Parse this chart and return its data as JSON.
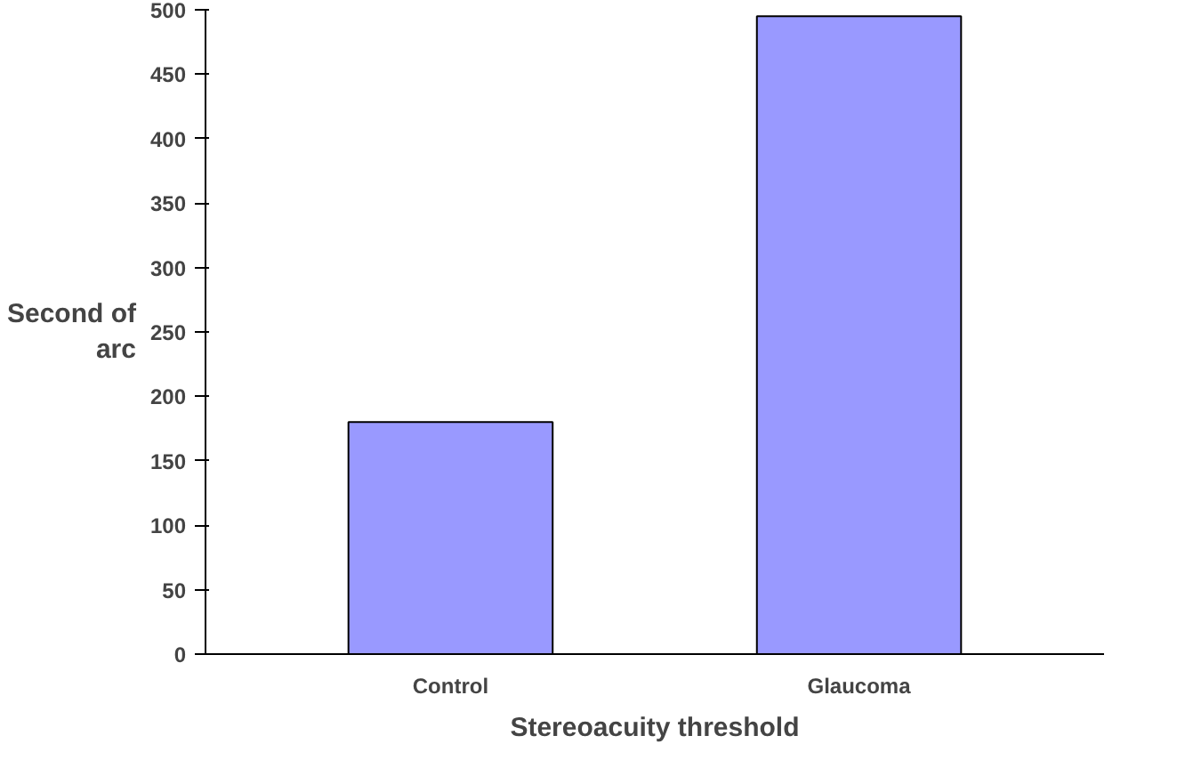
{
  "chart_data": {
    "type": "bar",
    "xlabel": "Stereoacuity threshold",
    "ylabel": "Second of\narc",
    "categories": [
      "Control",
      "Glaucoma"
    ],
    "values": [
      180,
      495
    ],
    "color": "#9999ff",
    "ylim": [
      0,
      500
    ],
    "yticks": [
      0,
      50,
      100,
      150,
      200,
      250,
      300,
      350,
      400,
      450,
      500
    ],
    "grid": false
  }
}
